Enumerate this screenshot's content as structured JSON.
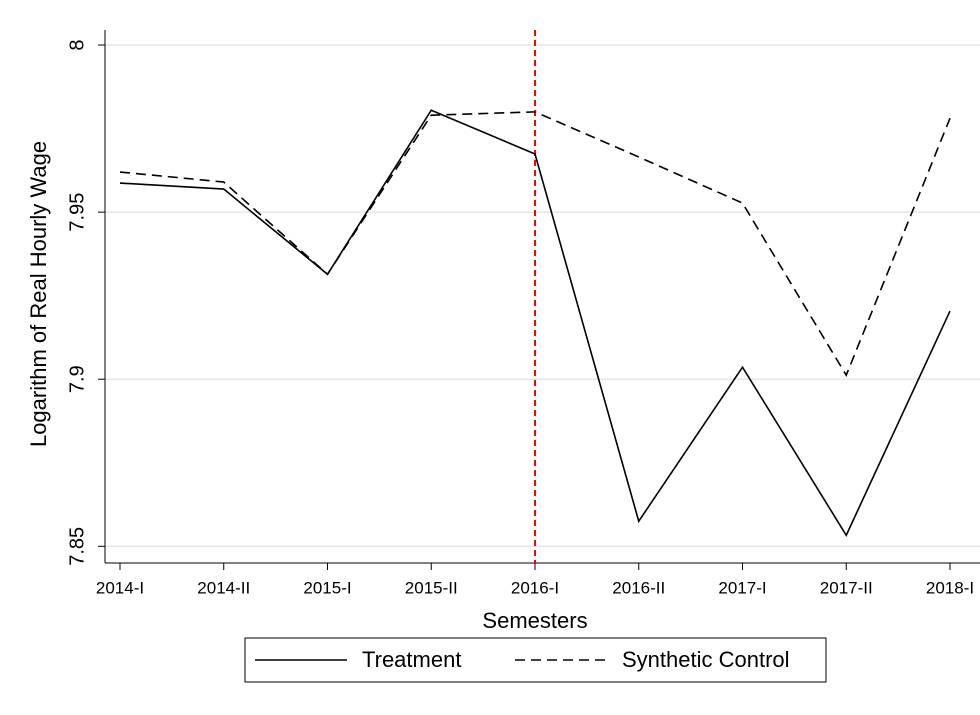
{
  "chart_data": {
    "type": "line",
    "xlabel": "Semesters",
    "ylabel": "Logarithm of Real Hourly Wage",
    "categories": [
      "2014-I",
      "2014-II",
      "2015-I",
      "2015-II",
      "2016-I",
      "2016-II",
      "2017-I",
      "2017-II",
      "2018-I"
    ],
    "series": [
      {
        "name": "Treatment",
        "color": "#000000",
        "dash": false,
        "values": [
          7.9587,
          7.9569,
          7.9314,
          7.9805,
          7.9674,
          7.8575,
          7.9036,
          7.8533,
          7.9204
        ]
      },
      {
        "name": "Synthetic Control",
        "color": "#000000",
        "dash": true,
        "values": [
          7.962,
          7.959,
          7.9314,
          7.979,
          7.98,
          7.9665,
          7.9527,
          7.9012,
          7.9781
        ]
      }
    ],
    "ylim": [
      7.845,
      8.0045
    ],
    "yticks": [
      7.85,
      7.9,
      7.95,
      8
    ],
    "grid": true,
    "vline": {
      "x": "2016-I",
      "color": "#ff0000"
    },
    "legend": "bottom"
  }
}
